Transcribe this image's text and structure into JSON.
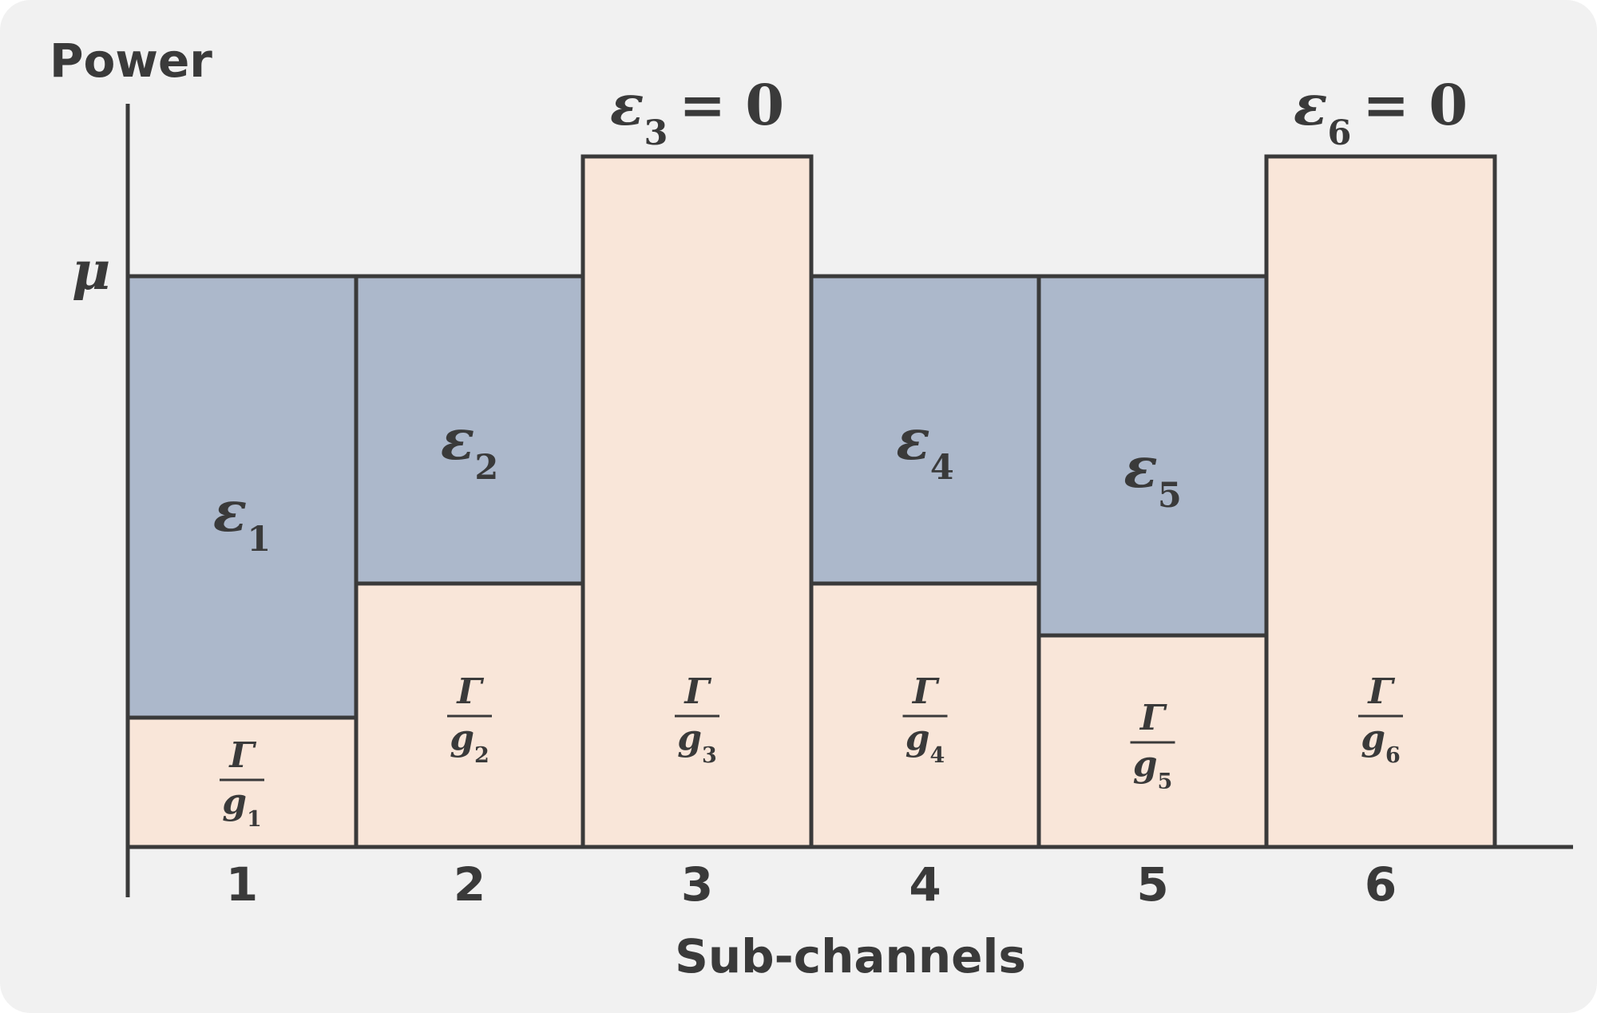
{
  "y_axis_label": "Power",
  "x_axis_label": "Sub-channels",
  "water_level_label": "μ",
  "gamma_symbol": "Γ",
  "gain_symbol": "g",
  "power_symbol": "ε",
  "colors": {
    "background": "#f1f1f1",
    "noise_fill": "#f9e6d9",
    "power_fill": "#acb8cb",
    "stroke": "#3a3a3a",
    "text": "#3a3a3a"
  },
  "channels": [
    {
      "index": "1",
      "power_label": "1",
      "gain_label": "1",
      "allocated": true
    },
    {
      "index": "2",
      "power_label": "2",
      "gain_label": "2",
      "allocated": true
    },
    {
      "index": "3",
      "power_label": "3",
      "gain_label": "3",
      "allocated": false,
      "zero_label": "= 0"
    },
    {
      "index": "4",
      "power_label": "4",
      "gain_label": "4",
      "allocated": true
    },
    {
      "index": "5",
      "power_label": "5",
      "gain_label": "5",
      "allocated": true
    },
    {
      "index": "6",
      "power_label": "6",
      "gain_label": "6",
      "allocated": false,
      "zero_label": "= 0"
    }
  ]
}
